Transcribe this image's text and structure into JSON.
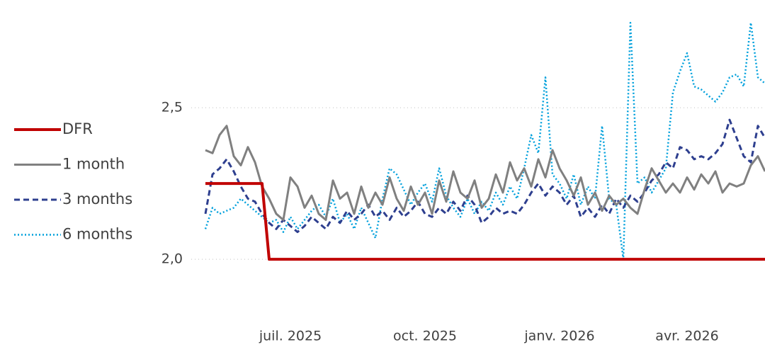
{
  "chart_data": {
    "type": "line",
    "categories": [
      null,
      null,
      null,
      null,
      null,
      null,
      null,
      null,
      null,
      null,
      null,
      null,
      "juil. 2025",
      null,
      null,
      null,
      null,
      null,
      null,
      null,
      null,
      null,
      null,
      null,
      null,
      null,
      null,
      null,
      null,
      null,
      null,
      "oct. 2025",
      null,
      null,
      null,
      null,
      null,
      null,
      null,
      null,
      null,
      null,
      null,
      null,
      null,
      null,
      null,
      null,
      null,
      null,
      "janv. 2026",
      null,
      null,
      null,
      null,
      null,
      null,
      null,
      null,
      null,
      null,
      null,
      null,
      null,
      null,
      null,
      null,
      null,
      "avr. 2026",
      null,
      null,
      null,
      null,
      null,
      null,
      null,
      null,
      null,
      null,
      null
    ],
    "series": [
      {
        "name": "DFR",
        "color": "#c00000",
        "dash": "solid",
        "values": [
          2.25,
          2.25,
          2.25,
          2.25,
          2.25,
          2.25,
          2.25,
          2.25,
          2.25,
          2.0,
          2.0,
          2.0,
          2.0,
          2.0,
          2.0,
          2.0,
          2.0,
          2.0,
          2.0,
          2.0,
          2.0,
          2.0,
          2.0,
          2.0,
          2.0,
          2.0,
          2.0,
          2.0,
          2.0,
          2.0,
          2.0,
          2.0,
          2.0,
          2.0,
          2.0,
          2.0,
          2.0,
          2.0,
          2.0,
          2.0,
          2.0,
          2.0,
          2.0,
          2.0,
          2.0,
          2.0,
          2.0,
          2.0,
          2.0,
          2.0,
          2.0,
          2.0,
          2.0,
          2.0,
          2.0,
          2.0,
          2.0,
          2.0,
          2.0,
          2.0,
          2.0,
          2.0,
          2.0,
          2.0,
          2.0,
          2.0,
          2.0,
          2.0,
          2.0,
          2.0,
          2.0,
          2.0,
          2.0,
          2.0,
          2.0,
          2.0,
          2.0,
          2.0,
          2.0,
          2.0
        ]
      },
      {
        "name": "1 month",
        "color": "#808080",
        "dash": "solid",
        "values": [
          2.36,
          2.35,
          2.41,
          2.44,
          2.34,
          2.31,
          2.37,
          2.32,
          2.24,
          2.2,
          2.15,
          2.13,
          2.27,
          2.24,
          2.17,
          2.21,
          2.15,
          2.13,
          2.26,
          2.2,
          2.22,
          2.15,
          2.24,
          2.17,
          2.22,
          2.18,
          2.27,
          2.2,
          2.16,
          2.24,
          2.18,
          2.22,
          2.15,
          2.26,
          2.19,
          2.29,
          2.22,
          2.2,
          2.26,
          2.17,
          2.2,
          2.28,
          2.22,
          2.32,
          2.26,
          2.3,
          2.24,
          2.33,
          2.27,
          2.36,
          2.3,
          2.26,
          2.21,
          2.27,
          2.18,
          2.22,
          2.16,
          2.21,
          2.18,
          2.2,
          2.17,
          2.15,
          2.23,
          2.3,
          2.26,
          2.22,
          2.25,
          2.22,
          2.27,
          2.23,
          2.28,
          2.25,
          2.29,
          2.22,
          2.25,
          2.24,
          2.25,
          2.31,
          2.34,
          2.29
        ]
      },
      {
        "name": "3 months",
        "color": "#2e3f8f",
        "dash": "dashed",
        "values": [
          2.15,
          2.28,
          2.3,
          2.33,
          2.29,
          2.24,
          2.2,
          2.19,
          2.15,
          2.12,
          2.1,
          2.13,
          2.11,
          2.09,
          2.11,
          2.14,
          2.12,
          2.1,
          2.14,
          2.12,
          2.16,
          2.13,
          2.15,
          2.18,
          2.14,
          2.16,
          2.13,
          2.17,
          2.14,
          2.16,
          2.19,
          2.15,
          2.14,
          2.17,
          2.15,
          2.19,
          2.16,
          2.21,
          2.18,
          2.12,
          2.14,
          2.17,
          2.15,
          2.16,
          2.15,
          2.18,
          2.22,
          2.25,
          2.21,
          2.24,
          2.22,
          2.18,
          2.21,
          2.14,
          2.17,
          2.14,
          2.18,
          2.15,
          2.2,
          2.17,
          2.21,
          2.19,
          2.22,
          2.26,
          2.28,
          2.32,
          2.3,
          2.37,
          2.36,
          2.33,
          2.34,
          2.33,
          2.35,
          2.38,
          2.46,
          2.4,
          2.34,
          2.32,
          2.44,
          2.4
        ]
      },
      {
        "name": "6 months",
        "color": "#00a0dc",
        "dash": "dotted",
        "values": [
          2.1,
          2.17,
          2.15,
          2.16,
          2.17,
          2.2,
          2.18,
          2.16,
          2.14,
          2.12,
          2.13,
          2.09,
          2.14,
          2.1,
          2.13,
          2.16,
          2.18,
          2.14,
          2.2,
          2.12,
          2.15,
          2.1,
          2.17,
          2.12,
          2.07,
          2.2,
          2.3,
          2.28,
          2.23,
          2.18,
          2.22,
          2.25,
          2.19,
          2.3,
          2.21,
          2.17,
          2.14,
          2.2,
          2.15,
          2.19,
          2.16,
          2.22,
          2.18,
          2.24,
          2.2,
          2.3,
          2.41,
          2.35,
          2.6,
          2.28,
          2.25,
          2.2,
          2.28,
          2.18,
          2.24,
          2.2,
          2.44,
          2.2,
          2.18,
          2.0,
          2.78,
          2.25,
          2.27,
          2.22,
          2.26,
          2.3,
          2.55,
          2.62,
          2.68,
          2.57,
          2.56,
          2.54,
          2.52,
          2.55,
          2.6,
          2.61,
          2.57,
          2.78,
          2.6,
          2.58
        ]
      }
    ],
    "ylim": [
      1.85,
      2.8
    ],
    "yticks": [
      {
        "value": 2.0,
        "label": "2,0"
      },
      {
        "value": 2.5,
        "label": "2,5"
      }
    ],
    "grid": true,
    "legend": "left"
  }
}
